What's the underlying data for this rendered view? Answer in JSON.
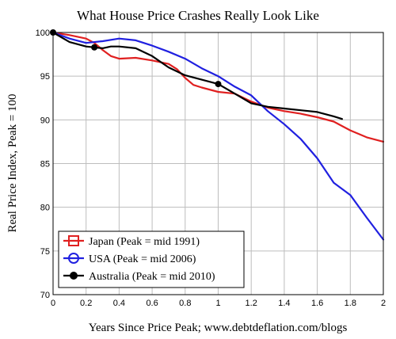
{
  "chart_data": {
    "type": "line",
    "title": "What House Price Crashes Really Look Like",
    "xlabel": "Years Since Price Peak; www.debtdeflation.com/blogs",
    "ylabel": "Real Price Index, Peak = 100",
    "xlim": [
      0,
      2
    ],
    "ylim": [
      70,
      100
    ],
    "x_ticks": [
      0,
      0.2,
      0.4,
      0.6,
      0.8,
      1,
      1.2,
      1.4,
      1.6,
      1.8,
      2
    ],
    "x_tick_labels": [
      "0",
      "0.2",
      "0.4",
      "0.6",
      "0.8",
      "1",
      "1.2",
      "1.4",
      "1.6",
      "1.8",
      "2"
    ],
    "y_ticks": [
      70,
      75,
      80,
      85,
      90,
      95,
      100
    ],
    "y_tick_labels": [
      "70",
      "75",
      "80",
      "85",
      "90",
      "95",
      "100"
    ],
    "grid": true,
    "legend_position": "bottom-left",
    "series": [
      {
        "name": "Japan (Peak = mid 1991)",
        "color": "#e02020",
        "marker": "square",
        "x": [
          0,
          0.1,
          0.2,
          0.25,
          0.3,
          0.35,
          0.4,
          0.5,
          0.6,
          0.7,
          0.75,
          0.8,
          0.85,
          0.9,
          1.0,
          1.1,
          1.2,
          1.3,
          1.4,
          1.5,
          1.6,
          1.7,
          1.75,
          1.8,
          1.9,
          2.0
        ],
        "values": [
          100,
          99.7,
          99.3,
          98.8,
          98.0,
          97.3,
          97.0,
          97.1,
          96.8,
          96.4,
          95.8,
          94.8,
          94.0,
          93.7,
          93.2,
          93.0,
          92.1,
          91.4,
          91.0,
          90.7,
          90.3,
          89.8,
          89.3,
          88.8,
          88.0,
          87.5
        ]
      },
      {
        "name": "USA (Peak = mid 2006)",
        "color": "#2020e0",
        "marker": "circle",
        "x": [
          0,
          0.1,
          0.2,
          0.3,
          0.4,
          0.5,
          0.6,
          0.7,
          0.8,
          0.9,
          1.0,
          1.1,
          1.2,
          1.3,
          1.4,
          1.5,
          1.6,
          1.7,
          1.8,
          1.9,
          2.0
        ],
        "values": [
          100,
          99.3,
          98.8,
          99.0,
          99.3,
          99.1,
          98.5,
          97.8,
          97.0,
          95.9,
          95.0,
          93.8,
          92.8,
          91.0,
          89.5,
          87.8,
          85.6,
          82.8,
          81.4,
          78.8,
          76.3
        ]
      },
      {
        "name": "Australia (Peak = mid 2010)",
        "color": "#000000",
        "marker": "filled-circle",
        "marker_points": [
          0,
          0.25,
          1.0
        ],
        "x": [
          0,
          0.1,
          0.2,
          0.25,
          0.3,
          0.35,
          0.4,
          0.5,
          0.6,
          0.7,
          0.8,
          0.9,
          1.0,
          1.1,
          1.2,
          1.3,
          1.4,
          1.5,
          1.6,
          1.7,
          1.75
        ],
        "values": [
          100,
          98.9,
          98.4,
          98.3,
          98.2,
          98.4,
          98.4,
          98.2,
          97.3,
          96.0,
          95.1,
          94.6,
          94.1,
          93.0,
          91.9,
          91.5,
          91.3,
          91.1,
          90.9,
          90.4,
          90.1
        ]
      }
    ]
  }
}
